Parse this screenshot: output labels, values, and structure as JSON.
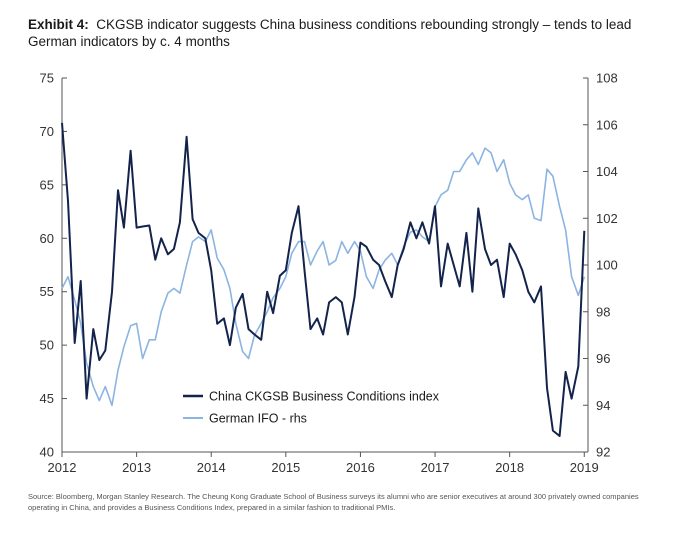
{
  "title": {
    "label": "Exhibit 4:",
    "text": "CKGSB indicator suggests China business conditions rebounding strongly – tends to lead German indicators by c. 4 months"
  },
  "source": "Source: Bloomberg, Morgan Stanley Research. The Cheung Kong Graduate School of Business surveys its alumni who are senior executives at around 300 privately owned companies operating in China, and provides a Business Conditions Index, prepared in a similar fashion to traditional PMIs.",
  "colors": {
    "china": "#14234b",
    "german": "#8cb4e2",
    "axis": "#555555"
  },
  "chart_data": {
    "type": "line",
    "grid": false,
    "legend_position": "bottom-center",
    "x_ticks": [
      "2012",
      "2013",
      "2014",
      "2015",
      "2016",
      "2017",
      "2018",
      "2019"
    ],
    "xlim": [
      2012.0,
      2019.05
    ],
    "y_left": {
      "ticks": [
        "40",
        "45",
        "50",
        "55",
        "60",
        "65",
        "70",
        "75"
      ],
      "lim": [
        40,
        75
      ]
    },
    "y_right": {
      "ticks": [
        "92",
        "94",
        "96",
        "98",
        "100",
        "102",
        "104",
        "106",
        "108"
      ],
      "lim": [
        92,
        108
      ]
    },
    "series": [
      {
        "name": "China CKGSB Business Conditions index",
        "axis": "left",
        "x": [
          2012.0,
          2012.08,
          2012.17,
          2012.25,
          2012.33,
          2012.42,
          2012.5,
          2012.58,
          2012.67,
          2012.75,
          2012.83,
          2012.92,
          2013.0,
          2013.08,
          2013.17,
          2013.25,
          2013.33,
          2013.42,
          2013.5,
          2013.58,
          2013.67,
          2013.75,
          2013.83,
          2013.92,
          2014.0,
          2014.08,
          2014.17,
          2014.25,
          2014.33,
          2014.42,
          2014.5,
          2014.58,
          2014.67,
          2014.75,
          2014.83,
          2014.92,
          2015.0,
          2015.08,
          2015.17,
          2015.25,
          2015.33,
          2015.42,
          2015.5,
          2015.58,
          2015.67,
          2015.75,
          2015.83,
          2015.92,
          2016.0,
          2016.08,
          2016.17,
          2016.25,
          2016.33,
          2016.42,
          2016.5,
          2016.58,
          2016.67,
          2016.75,
          2016.83,
          2016.92,
          2017.0,
          2017.08,
          2017.17,
          2017.25,
          2017.33,
          2017.42,
          2017.5,
          2017.58,
          2017.67,
          2017.75,
          2017.83,
          2017.92,
          2018.0,
          2018.08,
          2018.17,
          2018.25,
          2018.33,
          2018.42,
          2018.5,
          2018.58,
          2018.67,
          2018.75,
          2018.83,
          2018.92,
          2019.0
        ],
        "values": [
          70.8,
          63.5,
          50.2,
          56.0,
          45.0,
          51.5,
          48.6,
          49.5,
          55.0,
          64.5,
          61.0,
          68.2,
          61.0,
          61.1,
          61.2,
          58.0,
          60.0,
          58.5,
          59.0,
          61.5,
          69.5,
          61.8,
          60.5,
          60.0,
          57.0,
          52.0,
          52.5,
          50.0,
          53.5,
          54.8,
          51.5,
          51.0,
          50.5,
          55.0,
          53.0,
          56.5,
          57.0,
          60.5,
          63.0,
          57.0,
          51.5,
          52.5,
          51.0,
          54.0,
          54.5,
          54.0,
          51.0,
          54.5,
          59.6,
          59.2,
          58.0,
          57.5,
          56.0,
          54.5,
          57.5,
          59.0,
          61.5,
          60.0,
          61.5,
          59.5,
          63.0,
          55.5,
          59.5,
          57.5,
          55.5,
          60.5,
          55.0,
          62.8,
          59.0,
          57.5,
          58.0,
          54.5,
          59.5,
          58.5,
          57.0,
          55.0,
          54.0,
          55.5,
          46.0,
          42.0,
          41.5,
          47.5,
          45.0,
          48.0,
          60.7
        ]
      },
      {
        "name": "German IFO - rhs",
        "axis": "right",
        "x": [
          2012.0,
          2012.08,
          2012.17,
          2012.25,
          2012.33,
          2012.42,
          2012.5,
          2012.58,
          2012.67,
          2012.75,
          2012.83,
          2012.92,
          2013.0,
          2013.08,
          2013.17,
          2013.25,
          2013.33,
          2013.42,
          2013.5,
          2013.58,
          2013.67,
          2013.75,
          2013.83,
          2013.92,
          2014.0,
          2014.08,
          2014.17,
          2014.25,
          2014.33,
          2014.42,
          2014.5,
          2014.58,
          2014.67,
          2014.75,
          2014.83,
          2014.92,
          2015.0,
          2015.08,
          2015.17,
          2015.25,
          2015.33,
          2015.42,
          2015.5,
          2015.58,
          2015.67,
          2015.75,
          2015.83,
          2015.92,
          2016.0,
          2016.08,
          2016.17,
          2016.25,
          2016.33,
          2016.42,
          2016.5,
          2016.58,
          2016.67,
          2016.75,
          2016.83,
          2016.92,
          2017.0,
          2017.08,
          2017.17,
          2017.25,
          2017.33,
          2017.42,
          2017.5,
          2017.58,
          2017.67,
          2017.75,
          2017.83,
          2017.92,
          2018.0,
          2018.08,
          2018.17,
          2018.25,
          2018.33,
          2018.42,
          2018.5,
          2018.58,
          2018.67,
          2018.75,
          2018.83,
          2018.92,
          2019.0
        ],
        "values": [
          99.0,
          99.5,
          98.5,
          97.5,
          95.8,
          94.8,
          94.2,
          94.8,
          94.0,
          95.5,
          96.5,
          97.4,
          97.5,
          96.0,
          96.8,
          96.8,
          98.0,
          98.8,
          99.0,
          98.8,
          100.0,
          101.0,
          101.2,
          101.0,
          101.5,
          100.3,
          99.8,
          99.0,
          97.5,
          96.3,
          96.0,
          97.0,
          97.5,
          98.0,
          98.6,
          99.0,
          99.5,
          100.5,
          101.0,
          101.0,
          100.0,
          100.6,
          101.0,
          100.0,
          100.2,
          101.0,
          100.5,
          101.0,
          100.6,
          99.5,
          99.0,
          99.8,
          100.2,
          100.5,
          100.0,
          100.8,
          101.4,
          101.5,
          101.2,
          101.0,
          102.5,
          103.0,
          103.2,
          104.0,
          104.0,
          104.5,
          104.8,
          104.3,
          105.0,
          104.8,
          104.0,
          104.5,
          103.5,
          103.0,
          102.8,
          103.0,
          102.0,
          101.9,
          104.1,
          103.8,
          102.5,
          101.5,
          99.5,
          98.7,
          99.5
        ]
      }
    ]
  }
}
